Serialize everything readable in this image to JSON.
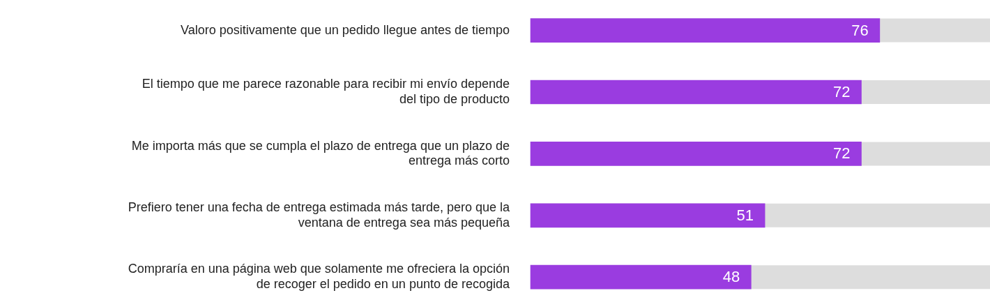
{
  "chart_data": {
    "type": "bar",
    "orientation": "horizontal",
    "categories": [
      "Valoro positivamente que un pedido llegue antes de tiempo",
      "El tiempo que me parece razonable para recibir mi envío depende del tipo de producto",
      "Me importa más que se cumpla el plazo de entrega que un plazo de entrega más corto",
      "Prefiero tener una fecha de entrega estimada más tarde, pero que la ventana de entrega sea más pequeña",
      "Compraría en una página web que solamente me ofreciera la opción de recoger el pedido en un punto de recogida"
    ],
    "values": [
      76,
      72,
      72,
      51,
      48
    ],
    "color": "#9a3ce0",
    "xlim": [
      0,
      100
    ],
    "tick_labels": "y",
    "legend": false,
    "data_labels": true
  }
}
